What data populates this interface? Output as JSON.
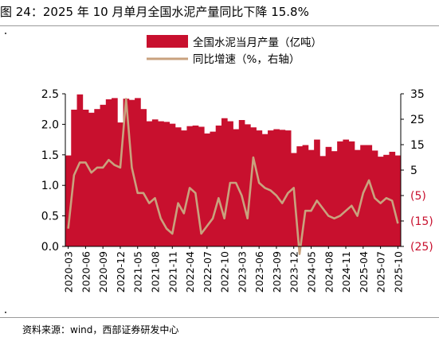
{
  "figure": {
    "title": "图 24：2025 年 10 月单月全国水泥产量同比下降 15.8%",
    "source": "资料来源：wind，西部证券研发中心"
  },
  "chart_data": {
    "type": "bar",
    "x_tick_labels": [
      "2020-03",
      "2020-06",
      "2020-09",
      "2020-12",
      "2021-05",
      "2021-08",
      "2021-11",
      "2022-04",
      "2022-07",
      "2022-10",
      "2023-03",
      "2023-06",
      "2023-09",
      "2023-12",
      "2024-05",
      "2024-08",
      "2024-11",
      "2025-04",
      "2025-07",
      "2025-10"
    ],
    "categories": [
      "2020-03",
      "2020-04",
      "2020-05",
      "2020-06",
      "2020-07",
      "2020-08",
      "2020-09",
      "2020-10",
      "2020-11",
      "2020-12",
      "2021-03",
      "2021-04",
      "2021-05",
      "2021-06",
      "2021-07",
      "2021-08",
      "2021-09",
      "2021-10",
      "2021-11",
      "2021-12",
      "2022-03",
      "2022-04",
      "2022-05",
      "2022-06",
      "2022-07",
      "2022-08",
      "2022-09",
      "2022-10",
      "2022-11",
      "2022-12",
      "2023-03",
      "2023-04",
      "2023-05",
      "2023-06",
      "2023-07",
      "2023-08",
      "2023-09",
      "2023-10",
      "2023-11",
      "2023-12",
      "2024-03",
      "2024-04",
      "2024-05",
      "2024-06",
      "2024-07",
      "2024-08",
      "2024-09",
      "2024-10",
      "2024-11",
      "2024-12",
      "2025-03",
      "2025-04",
      "2025-05",
      "2025-06",
      "2025-07",
      "2025-08",
      "2025-09",
      "2025-10"
    ],
    "series": [
      {
        "name": "全国水泥当月产量（亿吨）",
        "axis": "left",
        "type": "bar",
        "color": "#c8102e",
        "values": [
          1.49,
          2.24,
          2.49,
          2.24,
          2.19,
          2.25,
          2.32,
          2.41,
          2.43,
          2.03,
          2.42,
          2.4,
          2.43,
          2.25,
          2.05,
          2.08,
          2.05,
          2.04,
          2.01,
          1.95,
          1.9,
          1.97,
          1.98,
          1.96,
          1.85,
          1.88,
          1.98,
          2.1,
          2.05,
          1.92,
          2.07,
          2.0,
          1.95,
          1.9,
          1.84,
          1.9,
          1.92,
          1.91,
          1.9,
          1.53,
          1.64,
          1.66,
          1.58,
          1.75,
          1.48,
          1.63,
          1.56,
          1.72,
          1.75,
          1.72,
          1.58,
          1.66,
          1.66,
          1.57,
          1.47,
          1.5,
          1.55,
          1.49
        ]
      },
      {
        "name": "同比增速（%，右轴）",
        "axis": "right",
        "type": "line",
        "color": "#c9a27e",
        "values": [
          -18,
          3,
          8,
          8,
          4,
          6,
          6,
          9,
          7,
          6,
          33,
          6,
          -4,
          -4,
          -8,
          -6,
          -14,
          -18,
          -20,
          -8,
          -12,
          -2,
          -4,
          -20,
          -17,
          -14,
          -6,
          -14,
          0,
          0,
          -5,
          -14,
          10,
          0,
          -2,
          -3,
          -5,
          -8,
          -4,
          -2,
          -28,
          -11,
          -11,
          -7,
          -10,
          -13,
          -14,
          -13,
          -11,
          -9,
          -13,
          -4,
          1,
          -6,
          -8,
          -6,
          -7,
          -16
        ]
      }
    ],
    "y_left": {
      "range": [
        0,
        2.5
      ],
      "ticks": [
        "0.0",
        "0.5",
        "1.0",
        "1.5",
        "2.0",
        "2.5"
      ]
    },
    "y_right": {
      "range": [
        -25,
        35
      ],
      "ticks": [
        "35",
        "25",
        "15",
        "5",
        "(5)",
        "(15)",
        "(25)"
      ]
    },
    "grid": false,
    "legend_position": "top-right"
  }
}
